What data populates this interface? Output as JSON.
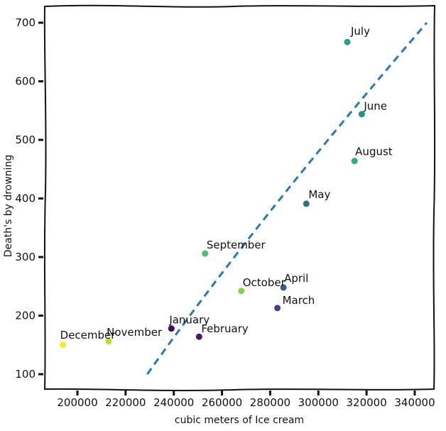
{
  "figure": {
    "background": "#ffffff",
    "border_color": "#111111",
    "text_color": "#111111"
  },
  "chart_data": {
    "type": "scatter",
    "title": "",
    "xlabel": "cubic meters of Ice cream",
    "ylabel": "Death's by drowning",
    "style": "hand-drawn (xkcd-like), wavy plot frame, labeled points",
    "grid": false,
    "legend": "none (points labeled directly)",
    "xlim": [
      186000,
      348000
    ],
    "ylim": [
      75,
      730
    ],
    "x_ticks": [
      200000,
      220000,
      240000,
      260000,
      280000,
      300000,
      320000,
      340000
    ],
    "y_ticks": [
      100,
      200,
      300,
      400,
      500,
      600,
      700
    ],
    "points": [
      {
        "label": "January",
        "x": 239000,
        "y": 178,
        "color": "#46085c"
      },
      {
        "label": "February",
        "x": 250500,
        "y": 164,
        "color": "#481b6d"
      },
      {
        "label": "March",
        "x": 283000,
        "y": 213,
        "color": "#433e85"
      },
      {
        "label": "April",
        "x": 285500,
        "y": 248,
        "color": "#38598c"
      },
      {
        "label": "May",
        "x": 295000,
        "y": 391,
        "color": "#2d708e"
      },
      {
        "label": "June",
        "x": 318000,
        "y": 544,
        "color": "#21918c"
      },
      {
        "label": "July",
        "x": 312000,
        "y": 667,
        "color": "#20a386"
      },
      {
        "label": "August",
        "x": 315000,
        "y": 464,
        "color": "#2db27d"
      },
      {
        "label": "September",
        "x": 253000,
        "y": 306,
        "color": "#4bc16c"
      },
      {
        "label": "October",
        "x": 268000,
        "y": 242,
        "color": "#7ed34f"
      },
      {
        "label": "November",
        "x": 213000,
        "y": 156,
        "color": "#bddf26"
      },
      {
        "label": "December",
        "x": 194000,
        "y": 150,
        "color": "#fde725"
      }
    ],
    "trend_line": {
      "style": "dashed",
      "color": "#2879b9",
      "from": {
        "x": 229000,
        "y": 100
      },
      "to": {
        "x": 345000,
        "y": 700
      }
    }
  }
}
